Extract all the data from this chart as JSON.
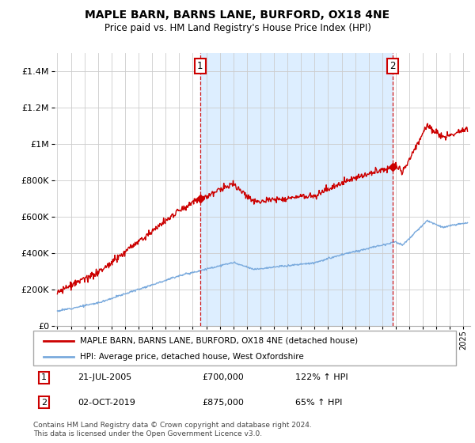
{
  "title": "MAPLE BARN, BARNS LANE, BURFORD, OX18 4NE",
  "subtitle": "Price paid vs. HM Land Registry's House Price Index (HPI)",
  "legend_line1": "MAPLE BARN, BARNS LANE, BURFORD, OX18 4NE (detached house)",
  "legend_line2": "HPI: Average price, detached house, West Oxfordshire",
  "sale1_date": "21-JUL-2005",
  "sale1_price": "£700,000",
  "sale1_hpi": "122% ↑ HPI",
  "sale1_year": 2005.55,
  "sale1_value": 700000,
  "sale2_date": "02-OCT-2019",
  "sale2_price": "£875,000",
  "sale2_hpi": "65% ↑ HPI",
  "sale2_year": 2019.77,
  "sale2_value": 875000,
  "footer": "Contains HM Land Registry data © Crown copyright and database right 2024.\nThis data is licensed under the Open Government Licence v3.0.",
  "red_color": "#cc0000",
  "blue_color": "#7aaadd",
  "shade_color": "#ddeeff",
  "background_color": "#ffffff",
  "grid_color": "#cccccc",
  "ylim_max": 1500000,
  "xmin": 1994.8,
  "xmax": 2025.5,
  "noise_seed": 12
}
